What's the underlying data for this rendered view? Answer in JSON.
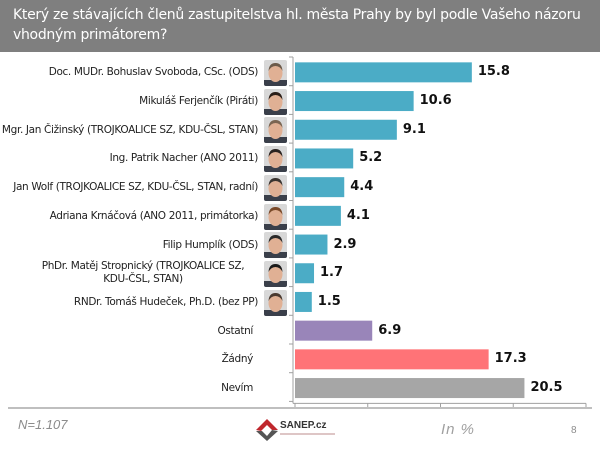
{
  "header": {
    "title": "Který ze stávajících členů zastupitelstva hl. města Prahy by byl podle Vašeho názoru vhodným primátorem?"
  },
  "chart_data": {
    "type": "bar",
    "orientation": "horizontal",
    "title": "Který ze stávajících členů zastupitelstva hl. města Prahy by byl podle Vašeho názoru vhodným primátorem?",
    "xlabel": "In %",
    "ylabel": "",
    "xlim": [
      0,
      26
    ],
    "x_ticks": [
      0,
      6.5,
      13,
      19.5,
      26
    ],
    "grid": false,
    "legend": "none",
    "categories": [
      "Doc. MUDr. Bohuslav Svoboda, CSc. (ODS)",
      "Mikuláš Ferjenčík (Piráti)",
      "Mgr. Jan Čižinský (TROJKOALICE SZ, KDU-ČSL, STAN)",
      "Ing. Patrik Nacher (ANO 2011)",
      "Jan Wolf (TROJKOALICE SZ, KDU-ČSL, STAN, radní)",
      "Adriana Krnáčová (ANO 2011, primátorka)",
      "Filip Humplík (ODS)",
      "PhDr. Matěj Stropnický (TROJKOALICE SZ, KDU-ČSL, STAN)",
      "RNDr. Tomáš Hudeček, Ph.D. (bez PP)",
      "Ostatní",
      "Žádný",
      "Nevím"
    ],
    "values": [
      15.8,
      10.6,
      9.1,
      5.2,
      4.4,
      4.1,
      2.9,
      1.7,
      1.5,
      6.9,
      17.3,
      20.5
    ],
    "value_labels": [
      "15.8",
      "10.6",
      "9.1",
      "5.2",
      "4.4",
      "4.1",
      "2.9",
      "1.7",
      "1.5",
      "6.9",
      "17.3",
      "20.5"
    ],
    "bar_colors": [
      "#4bacc6",
      "#4bacc6",
      "#4bacc6",
      "#4bacc6",
      "#4bacc6",
      "#4bacc6",
      "#4bacc6",
      "#4bacc6",
      "#4bacc6",
      "#9985b9",
      "#ff7377",
      "#a6a6a6"
    ],
    "has_photo": [
      true,
      true,
      true,
      true,
      true,
      true,
      true,
      true,
      true,
      false,
      false,
      false
    ]
  },
  "footer": {
    "sample_size": "N=1.107",
    "unit": "In %",
    "page_number": "8",
    "logo_text": "SANEP.cz"
  },
  "colors": {
    "header_bg": "#7f7f7f",
    "candidate_bar": "#4bacc6",
    "other_bar": "#9985b9",
    "none_bar": "#ff7377",
    "dont_know_bar": "#a6a6a6"
  }
}
